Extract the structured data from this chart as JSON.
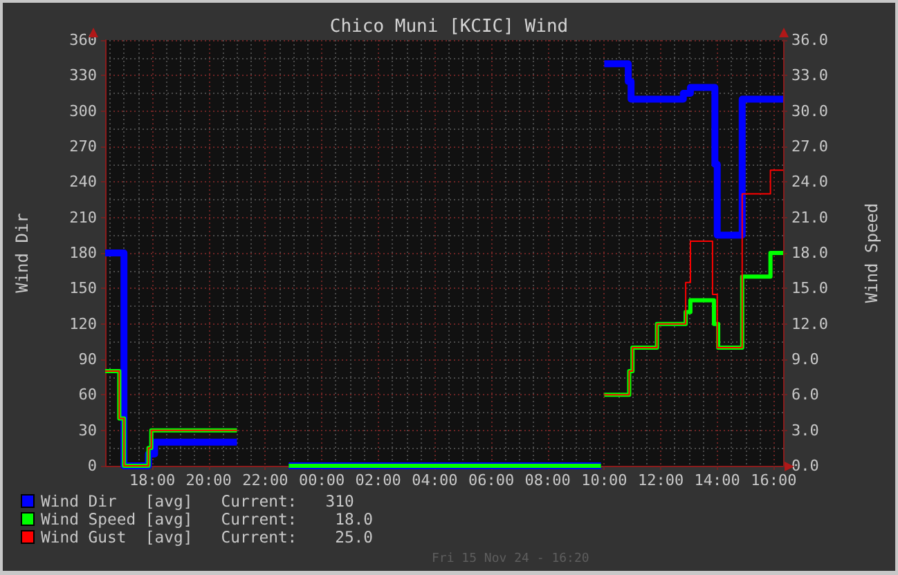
{
  "chart_data": {
    "type": "step",
    "title": "Chico Muni [KCIC] Wind",
    "ylabel": "Wind Dir",
    "y2label": "Wind Speed",
    "xlim": [
      "--11-14T16:20",
      "--11-15T16:20"
    ],
    "xticks": [
      {
        "value": "--11-14T18:00",
        "label": "18:00"
      },
      {
        "value": "--11-14T20:00",
        "label": "20:00"
      },
      {
        "value": "--11-14T22:00",
        "label": "22:00"
      },
      {
        "value": "--11-15T00:00",
        "label": "00:00"
      },
      {
        "value": "--11-15T02:00",
        "label": "02:00"
      },
      {
        "value": "--11-15T04:00",
        "label": "04:00"
      },
      {
        "value": "--11-15T06:00",
        "label": "06:00"
      },
      {
        "value": "--11-15T08:00",
        "label": "08:00"
      },
      {
        "value": "--11-15T10:00",
        "label": "10:00"
      },
      {
        "value": "--11-15T12:00",
        "label": "12:00"
      },
      {
        "value": "--11-15T14:00",
        "label": "14:00"
      },
      {
        "value": "--11-15T16:00",
        "label": "16:00"
      }
    ],
    "ylim": [
      0,
      360
    ],
    "yticks": [
      0,
      30,
      60,
      90,
      120,
      150,
      180,
      210,
      240,
      270,
      300,
      330,
      360
    ],
    "y2lim": [
      0,
      36
    ],
    "y2ticks": [
      {
        "value": 0,
        "label": "0.0"
      },
      {
        "value": 3,
        "label": "3.0"
      },
      {
        "value": 6,
        "label": "6.0"
      },
      {
        "value": 9,
        "label": "9.0"
      },
      {
        "value": 12,
        "label": "12.0"
      },
      {
        "value": 15,
        "label": "15.0"
      },
      {
        "value": 18,
        "label": "18.0"
      },
      {
        "value": 21,
        "label": "21.0"
      },
      {
        "value": 24,
        "label": "24.0"
      },
      {
        "value": 27,
        "label": "27.0"
      },
      {
        "value": 30,
        "label": "30.0"
      },
      {
        "value": 33,
        "label": "33.0"
      },
      {
        "value": 36,
        "label": "36.0"
      }
    ],
    "grid": true,
    "legend": "bottom left",
    "series": [
      {
        "name": "Wind Dir   [avg]   Current:   310",
        "color": "#0000ff",
        "x": [
          "--11-14T16:20",
          "--11-14T17:00",
          "--11-14T17:52",
          "--11-14T18:05",
          "--11-14T19:25",
          "--11-14T21:00",
          "--11-14T22:50",
          "--11-15T09:46",
          "--11-15T09:53",
          "--11-15T10:00",
          "--11-15T10:51",
          "--11-15T10:57",
          "--11-15T12:48",
          "--11-15T13:03",
          "--11-15T13:55",
          "--11-15T14:00",
          "--11-15T14:53",
          "--11-15T16:20"
        ],
        "values": [
          180,
          0,
          10,
          20,
          20,
          null,
          0,
          0,
          null,
          340,
          325,
          310,
          315,
          320,
          255,
          195,
          310,
          310
        ]
      },
      {
        "name": "Wind Speed [avg]   Current:    18.0",
        "color": "#00ff00",
        "axis": "y2",
        "x": [
          "--11-14T16:20",
          "--11-14T16:50",
          "--11-14T17:00",
          "--11-14T17:52",
          "--11-14T17:58",
          "--11-14T19:25",
          "--11-14T21:00",
          "--11-14T22:50",
          "--11-15T09:46",
          "--11-15T09:53",
          "--11-15T10:00",
          "--11-15T10:53",
          "--11-15T11:00",
          "--11-15T11:52",
          "--11-15T12:53",
          "--11-15T13:03",
          "--11-15T13:53",
          "--11-15T14:02",
          "--11-15T14:53",
          "--11-15T15:53",
          "--11-15T16:20"
        ],
        "values": [
          8,
          4,
          0,
          1.5,
          3,
          3,
          null,
          0,
          0,
          null,
          6,
          8,
          10,
          12,
          13,
          14,
          12,
          10,
          16,
          18,
          18
        ]
      },
      {
        "name": "Wind Gust  [avg]   Current:    25.0",
        "color": "#ff0000",
        "axis": "y2",
        "x": [
          "--11-14T16:20",
          "--11-14T16:50",
          "--11-14T17:00",
          "--11-14T17:52",
          "--11-14T17:58",
          "--11-14T19:25",
          "--11-14T21:00",
          "--11-15T10:00",
          "--11-15T10:53",
          "--11-15T11:00",
          "--11-15T11:52",
          "--11-15T12:53",
          "--11-15T13:03",
          "--11-15T13:50",
          "--11-15T14:00",
          "--11-15T14:53",
          "--11-15T15:53",
          "--11-15T16:20"
        ],
        "values": [
          8,
          4,
          0,
          1.5,
          3,
          3,
          null,
          6,
          8,
          10,
          12,
          15.5,
          19,
          14.5,
          10,
          23,
          25,
          25
        ]
      }
    ],
    "annotations": [
      "Fri 15 Nov 24 - 16:20"
    ]
  }
}
